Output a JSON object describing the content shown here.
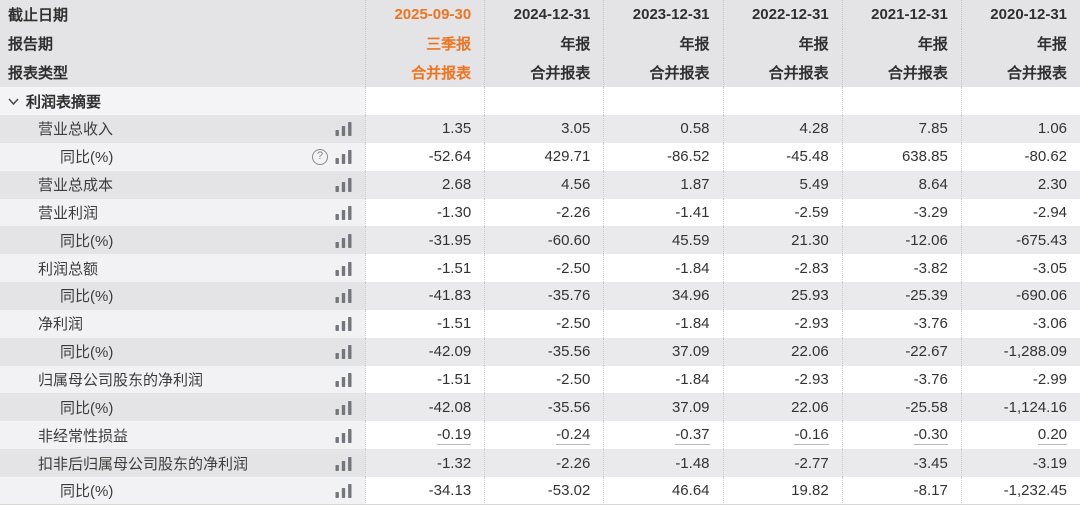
{
  "table": {
    "header_rows": [
      {
        "key": "date",
        "label": "截止日期"
      },
      {
        "key": "period",
        "label": "报告期"
      },
      {
        "key": "rtype",
        "label": "报表类型"
      }
    ],
    "columns": [
      {
        "date": "2025-09-30",
        "period": "三季报",
        "rtype": "合并报表",
        "highlight": true
      },
      {
        "date": "2024-12-31",
        "period": "年报",
        "rtype": "合并报表",
        "highlight": false
      },
      {
        "date": "2023-12-31",
        "period": "年报",
        "rtype": "合并报表",
        "highlight": false
      },
      {
        "date": "2022-12-31",
        "period": "年报",
        "rtype": "合并报表",
        "highlight": false
      },
      {
        "date": "2021-12-31",
        "period": "年报",
        "rtype": "合并报表",
        "highlight": false
      },
      {
        "date": "2020-12-31",
        "period": "年报",
        "rtype": "合并报表",
        "highlight": false
      }
    ],
    "section": {
      "title": "利润表摘要",
      "chevron_icon": "chevron-down-icon",
      "expanded": true
    },
    "rows": [
      {
        "label": "营业总收入",
        "indent": 1,
        "help": false,
        "underline": false,
        "values": [
          "1.35",
          "3.05",
          "0.58",
          "4.28",
          "7.85",
          "1.06"
        ]
      },
      {
        "label": "同比(%)",
        "indent": 2,
        "help": true,
        "underline": false,
        "values": [
          "-52.64",
          "429.71",
          "-86.52",
          "-45.48",
          "638.85",
          "-80.62"
        ]
      },
      {
        "label": "营业总成本",
        "indent": 1,
        "help": false,
        "underline": false,
        "values": [
          "2.68",
          "4.56",
          "1.87",
          "5.49",
          "8.64",
          "2.30"
        ]
      },
      {
        "label": "营业利润",
        "indent": 1,
        "help": false,
        "underline": false,
        "values": [
          "-1.30",
          "-2.26",
          "-1.41",
          "-2.59",
          "-3.29",
          "-2.94"
        ]
      },
      {
        "label": "同比(%)",
        "indent": 2,
        "help": false,
        "underline": false,
        "values": [
          "-31.95",
          "-60.60",
          "45.59",
          "21.30",
          "-12.06",
          "-675.43"
        ]
      },
      {
        "label": "利润总额",
        "indent": 1,
        "help": false,
        "underline": false,
        "values": [
          "-1.51",
          "-2.50",
          "-1.84",
          "-2.83",
          "-3.82",
          "-3.05"
        ]
      },
      {
        "label": "同比(%)",
        "indent": 2,
        "help": false,
        "underline": false,
        "values": [
          "-41.83",
          "-35.76",
          "34.96",
          "25.93",
          "-25.39",
          "-690.06"
        ]
      },
      {
        "label": "净利润",
        "indent": 1,
        "help": false,
        "underline": false,
        "values": [
          "-1.51",
          "-2.50",
          "-1.84",
          "-2.93",
          "-3.76",
          "-3.06"
        ]
      },
      {
        "label": "同比(%)",
        "indent": 2,
        "help": false,
        "underline": false,
        "values": [
          "-42.09",
          "-35.56",
          "37.09",
          "22.06",
          "-22.67",
          "-1,288.09"
        ]
      },
      {
        "label": "归属母公司股东的净利润",
        "indent": 1,
        "help": false,
        "underline": false,
        "values": [
          "-1.51",
          "-2.50",
          "-1.84",
          "-2.93",
          "-3.76",
          "-2.99"
        ]
      },
      {
        "label": "同比(%)",
        "indent": 2,
        "help": false,
        "underline": false,
        "values": [
          "-42.08",
          "-35.56",
          "37.09",
          "22.06",
          "-25.58",
          "-1,124.16"
        ]
      },
      {
        "label": "非经常性损益",
        "indent": 1,
        "help": false,
        "underline": true,
        "values": [
          "-0.19",
          "-0.24",
          "-0.37",
          "-0.16",
          "-0.30",
          "0.20"
        ]
      },
      {
        "label": "扣非后归属母公司股东的净利润",
        "indent": 1,
        "help": false,
        "underline": false,
        "values": [
          "-1.32",
          "-2.26",
          "-1.48",
          "-2.77",
          "-3.45",
          "-3.19"
        ]
      },
      {
        "label": "同比(%)",
        "indent": 2,
        "help": false,
        "underline": false,
        "values": [
          "-34.13",
          "-53.02",
          "46.64",
          "19.82",
          "-8.17",
          "-1,232.45"
        ]
      }
    ],
    "icons": {
      "row_metric_icon": "bar-chart-icon",
      "tooltip_icon": "help-icon",
      "help_glyph": "?"
    },
    "colors": {
      "highlight_column_text": "#ee7420",
      "negative_value_text": "#cf3126",
      "normal_text": "#333333",
      "header_background": "#e4e4e6",
      "stripe_background": "#eaeaec",
      "white_row_background": "#ffffff"
    }
  }
}
